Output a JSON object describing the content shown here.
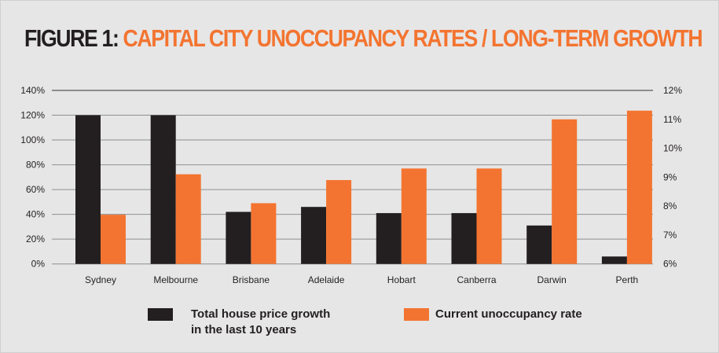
{
  "title_prefix": "FIGURE 1:",
  "title_main": "CAPITAL CITY UNOCCUPANCY RATES / LONG-TERM GROWTH",
  "colors": {
    "growth": "#231f20",
    "unoccupancy": "#f37430",
    "background": "#e6e6e6"
  },
  "chart_data": {
    "type": "bar",
    "categories": [
      "Sydney",
      "Melbourne",
      "Brisbane",
      "Adelaide",
      "Hobart",
      "Canberra",
      "Darwin",
      "Perth"
    ],
    "series": [
      {
        "name": "Total house price growth in the last 10 years",
        "axis": "left",
        "values": [
          120,
          120,
          42,
          46,
          41,
          41,
          31,
          6
        ]
      },
      {
        "name": "Current unoccupancy rate",
        "axis": "right",
        "values": [
          7.7,
          9.1,
          8.1,
          8.9,
          9.3,
          9.3,
          11.0,
          11.3
        ]
      }
    ],
    "left_axis": {
      "ylim": [
        0,
        140
      ],
      "ticks": [
        "0%",
        "20%",
        "40%",
        "60%",
        "80%",
        "100%",
        "120%",
        "140%"
      ]
    },
    "right_axis": {
      "ylim": [
        6,
        12
      ],
      "ticks": [
        "6%",
        "7%",
        "8%",
        "9%",
        "10%",
        "11%",
        "12%"
      ]
    },
    "grid": true,
    "legend_position": "bottom"
  },
  "legend": {
    "growth_line1": "Total house price growth",
    "growth_line2": "in the last 10 years",
    "unoccupancy": "Current unoccupancy rate"
  }
}
